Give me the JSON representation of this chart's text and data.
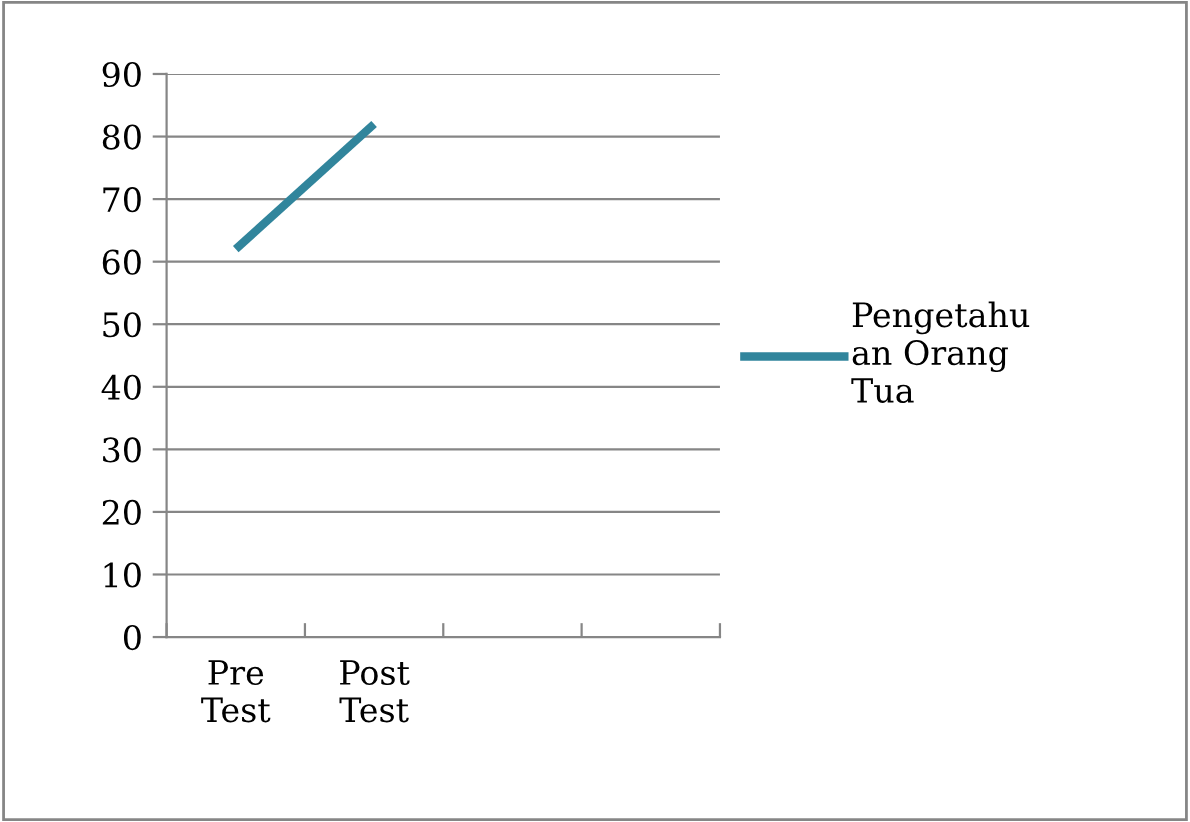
{
  "chart_data": {
    "type": "line",
    "categories": [
      "Pre Test",
      "Post Test",
      null,
      null
    ],
    "series": [
      {
        "name": "Pengetahuan Orang Tua",
        "color": "#31859c",
        "values": [
          62,
          82,
          null,
          null
        ]
      }
    ],
    "ylim": [
      0,
      90
    ],
    "yticks": [
      0,
      10,
      20,
      30,
      40,
      50,
      60,
      70,
      80,
      90
    ],
    "grid": "y",
    "legend": "right",
    "marker": "none",
    "line_style": "solid"
  }
}
